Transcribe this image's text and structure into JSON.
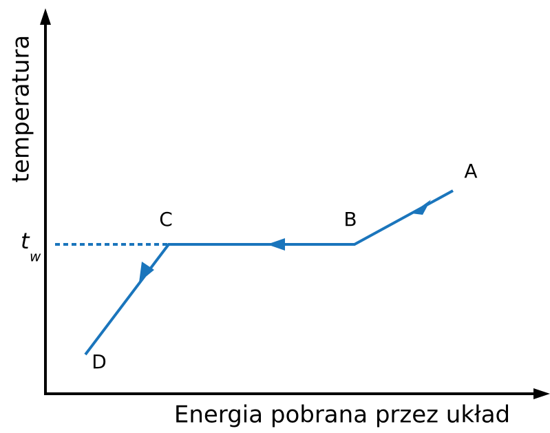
{
  "axes": {
    "x_label": "Energia pobrana przez układ",
    "y_label": "temperatura"
  },
  "reference": {
    "label": "t",
    "subscript": "w"
  },
  "points": [
    {
      "label": "A"
    },
    {
      "label": "B"
    },
    {
      "label": "C"
    },
    {
      "label": "D"
    }
  ]
}
